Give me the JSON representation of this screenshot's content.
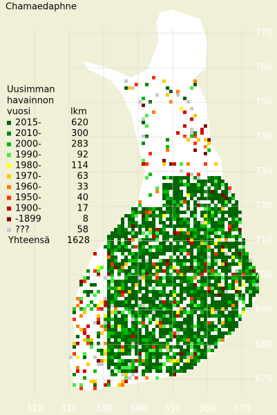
{
  "title": "Chamaedaphne",
  "legend": {
    "heading": [
      "Uusimman",
      "havainnon",
      "vuosi"
    ],
    "count_heading": "lkm",
    "rows": [
      {
        "label": "2015-",
        "count": "620",
        "color": "#006400"
      },
      {
        "label": "2010-",
        "count": "300",
        "color": "#008c00"
      },
      {
        "label": "2000-",
        "count": "283",
        "color": "#00c000"
      },
      {
        "label": "1990-",
        "count": "92",
        "color": "#40f040"
      },
      {
        "label": "1980-",
        "count": "114",
        "color": "#ffff00"
      },
      {
        "label": "1970-",
        "count": "63",
        "color": "#ffc800"
      },
      {
        "label": "1960-",
        "count": "33",
        "color": "#ff8000"
      },
      {
        "label": "1950-",
        "count": "40",
        "color": "#ff3000"
      },
      {
        "label": "1900-",
        "count": "17",
        "color": "#d00000"
      },
      {
        "label": "-1899",
        "count": "8",
        "color": "#800000"
      },
      {
        "label": "???",
        "count": "58",
        "color": "#c8c8c8"
      }
    ],
    "total_label": "Yhteensä",
    "total": "1628"
  },
  "axes": {
    "y": {
      "lim": [
        665,
        775
      ],
      "ticks": [
        770,
        760,
        750,
        740,
        730,
        720,
        710,
        700,
        690,
        680,
        670
      ]
    },
    "x": {
      "lim": [
        300,
        380
      ],
      "ticks": [
        310,
        320,
        330,
        340,
        350,
        360,
        370
      ]
    }
  }
}
